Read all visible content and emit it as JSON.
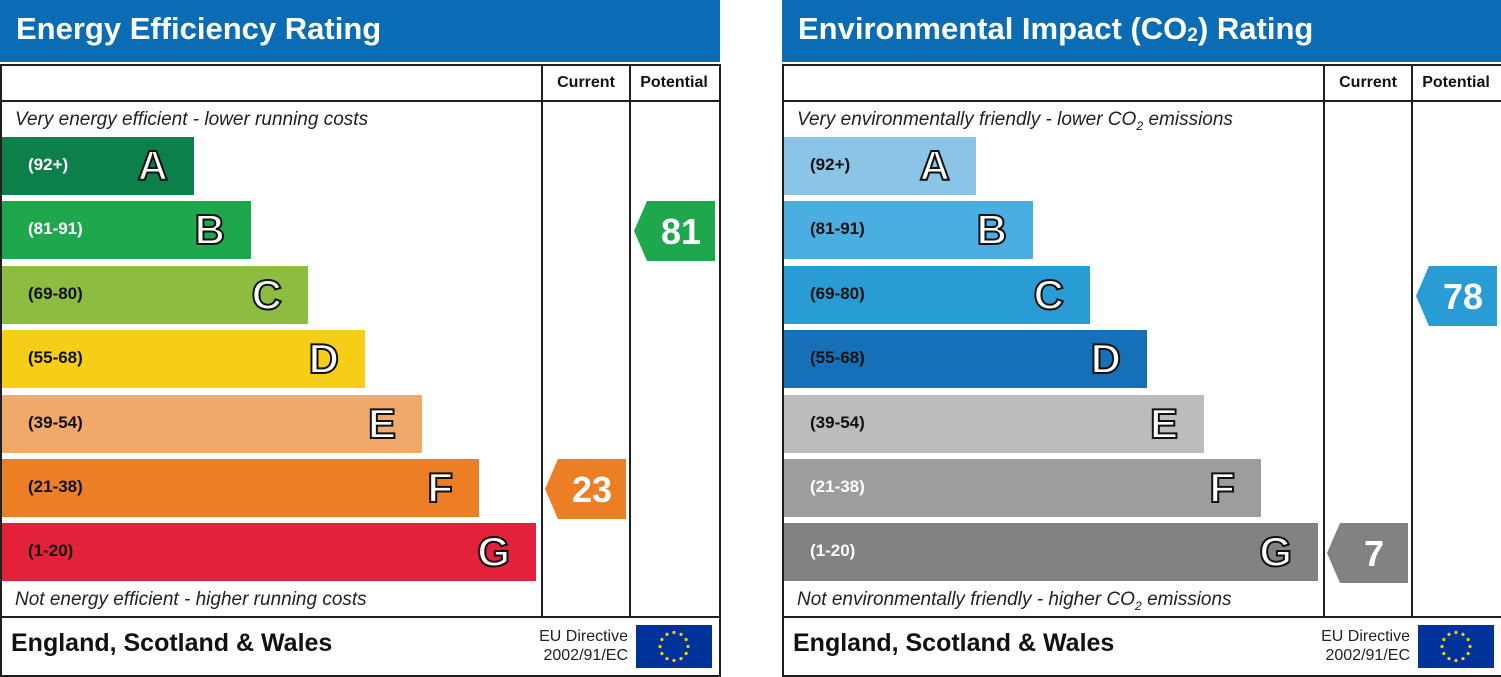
{
  "charts": [
    {
      "title": "Energy Efficiency Rating",
      "columns": [
        "Current",
        "Potential"
      ],
      "top_caption": "Very energy efficient - lower running costs",
      "bottom_caption": "Not energy efficient - higher running costs",
      "footer": "England, Scotland & Wales",
      "directive_line1": "EU Directive",
      "directive_line2": "2002/91/EC",
      "bands": [
        {
          "range": "(92+)",
          "letter": "A",
          "color": "#0c7f4a",
          "text_color": "#ffffff"
        },
        {
          "range": "(81-91)",
          "letter": "B",
          "color": "#1ea74c",
          "text_color": "#ffffff"
        },
        {
          "range": "(69-80)",
          "letter": "C",
          "color": "#8cbd41",
          "text_color": "#111111"
        },
        {
          "range": "(55-68)",
          "letter": "D",
          "color": "#f6cd17",
          "text_color": "#111111"
        },
        {
          "range": "(39-54)",
          "letter": "E",
          "color": "#f1a96b",
          "text_color": "#111111"
        },
        {
          "range": "(21-38)",
          "letter": "F",
          "color": "#ec7f26",
          "text_color": "#111111"
        },
        {
          "range": "(1-20)",
          "letter": "G",
          "color": "#e3213b",
          "text_color": "#111111"
        }
      ],
      "current": {
        "value": "23",
        "band": "F",
        "color": "#ec7f26"
      },
      "potential": {
        "value": "81",
        "band": "B",
        "color": "#1ea74c"
      }
    },
    {
      "title": "Environmental Impact (CO",
      "title_sub": "2",
      "title_end": ") Rating",
      "columns": [
        "Current",
        "Potential"
      ],
      "top_caption": "Very environmentally friendly - lower CO",
      "top_caption_sub": "2",
      "top_caption_end": " emissions",
      "bottom_caption": "Not environmentally friendly - higher CO",
      "bottom_caption_sub": "2",
      "bottom_caption_end": " emissions",
      "footer": "England, Scotland & Wales",
      "directive_line1": "EU Directive",
      "directive_line2": "2002/91/EC",
      "bands": [
        {
          "range": "(92+)",
          "letter": "A",
          "color": "#8ac5e8",
          "text_color": "#111111"
        },
        {
          "range": "(81-91)",
          "letter": "B",
          "color": "#4aaee0",
          "text_color": "#111111"
        },
        {
          "range": "(69-80)",
          "letter": "C",
          "color": "#299cd5",
          "text_color": "#111111"
        },
        {
          "range": "(55-68)",
          "letter": "D",
          "color": "#1670b8",
          "text_color": "#111111"
        },
        {
          "range": "(39-54)",
          "letter": "E",
          "color": "#bcbcbc",
          "text_color": "#111111"
        },
        {
          "range": "(21-38)",
          "letter": "F",
          "color": "#9d9d9d",
          "text_color": "#ffffff"
        },
        {
          "range": "(1-20)",
          "letter": "G",
          "color": "#828282",
          "text_color": "#ffffff"
        }
      ],
      "current": {
        "value": "7",
        "band": "G",
        "color": "#828282"
      },
      "potential": {
        "value": "78",
        "band": "C",
        "color": "#299cd5"
      }
    }
  ],
  "chart_data": [
    {
      "type": "bar",
      "title": "Energy Efficiency Rating",
      "categories": [
        "A",
        "B",
        "C",
        "D",
        "E",
        "F",
        "G"
      ],
      "category_ranges": [
        "(92+)",
        "(81-91)",
        "(69-80)",
        "(55-68)",
        "(39-54)",
        "(21-38)",
        "(1-20)"
      ],
      "current": 23,
      "potential": 81
    },
    {
      "type": "bar",
      "title": "Environmental Impact (CO2) Rating",
      "categories": [
        "A",
        "B",
        "C",
        "D",
        "E",
        "F",
        "G"
      ],
      "category_ranges": [
        "(92+)",
        "(81-91)",
        "(69-80)",
        "(55-68)",
        "(39-54)",
        "(21-38)",
        "(1-20)"
      ],
      "current": 7,
      "potential": 78
    }
  ]
}
